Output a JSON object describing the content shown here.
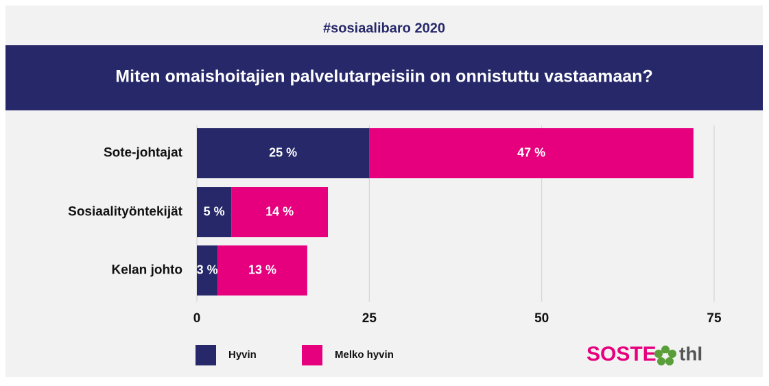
{
  "chart_data": {
    "type": "stacked-bar-horizontal",
    "subtitle": "#sosiaalibaro 2020",
    "title": "Miten omaishoitajien palvelutarpeisiin on onnistuttu vastaamaan?",
    "categories": [
      "Sote-johtajat",
      "Sosiaalityöntekijät",
      "Kelan johto"
    ],
    "series": [
      {
        "name": "Hyvin",
        "color": "#262869",
        "values": [
          25,
          5,
          3
        ],
        "value_labels": [
          "25 %",
          "5 %",
          "3 %"
        ]
      },
      {
        "name": "Melko hyvin",
        "color": "#e6007e",
        "values": [
          47,
          14,
          13
        ],
        "value_labels": [
          "47 %",
          "14 %",
          "13 %"
        ]
      }
    ],
    "xlim": [
      0,
      75
    ],
    "xticks": [
      0,
      25,
      50,
      75
    ],
    "grid": true,
    "legend": "bottom-left"
  },
  "logos": [
    "SOSTE",
    "thl"
  ]
}
